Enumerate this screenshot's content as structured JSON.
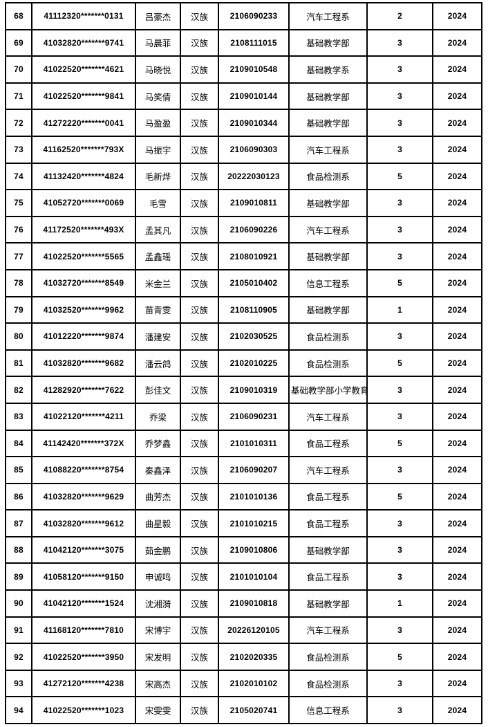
{
  "colors": {
    "border": "#000000",
    "text": "#000000",
    "background": "#ffffff"
  },
  "table": {
    "columns": [
      {
        "key": "row_number",
        "name": "cell-row-number"
      },
      {
        "key": "id_number",
        "name": "cell-id-number"
      },
      {
        "key": "student_name",
        "name": "cell-student-name"
      },
      {
        "key": "ethnicity",
        "name": "cell-ethnicity"
      },
      {
        "key": "student_id",
        "name": "cell-student-id"
      },
      {
        "key": "department",
        "name": "cell-department"
      },
      {
        "key": "count",
        "name": "cell-count"
      },
      {
        "key": "year",
        "name": "cell-year"
      }
    ],
    "rows": [
      [
        "68",
        "41112320*******0131",
        "吕豪杰",
        "汉族",
        "2106090233",
        "汽车工程系",
        "2",
        "2024"
      ],
      [
        "69",
        "41032820*******9741",
        "马晨菲",
        "汉族",
        "2108111015",
        "基础教学部",
        "3",
        "2024"
      ],
      [
        "70",
        "41022520*******4621",
        "马晓悦",
        "汉族",
        "2109010548",
        "基础教学系",
        "3",
        "2024"
      ],
      [
        "71",
        "41022520*******9841",
        "马笑倩",
        "汉族",
        "2109010144",
        "基础教学部",
        "3",
        "2024"
      ],
      [
        "72",
        "41272220*******0041",
        "马盈盈",
        "汉族",
        "2109010344",
        "基础教学部",
        "3",
        "2024"
      ],
      [
        "73",
        "41162520*******793X",
        "马振宇",
        "汉族",
        "2106090303",
        "汽车工程系",
        "3",
        "2024"
      ],
      [
        "74",
        "41132420*******4824",
        "毛新烨",
        "汉族",
        "20222030123",
        "食品检测系",
        "5",
        "2024"
      ],
      [
        "75",
        "41052720*******0069",
        "毛雪",
        "汉族",
        "2109010811",
        "基础教学部",
        "3",
        "2024"
      ],
      [
        "76",
        "41172520*******493X",
        "孟其凡",
        "汉族",
        "2106090226",
        "汽车工程系",
        "3",
        "2024"
      ],
      [
        "77",
        "41022520*******5565",
        "孟鑫瑶",
        "汉族",
        "2108010921",
        "基础教学部",
        "3",
        "2024"
      ],
      [
        "78",
        "41032720*******8549",
        "米金兰",
        "汉族",
        "2105010402",
        "信息工程系",
        "5",
        "2024"
      ],
      [
        "79",
        "41032520*******9962",
        "苗青雯",
        "汉族",
        "2108110905",
        "基础教学部",
        "1",
        "2024"
      ],
      [
        "80",
        "41012220*******9874",
        "潘建安",
        "汉族",
        "2102030525",
        "食品检测系",
        "3",
        "2024"
      ],
      [
        "81",
        "41032820*******9682",
        "潘云鸽",
        "汉族",
        "2102010225",
        "食品检测系",
        "5",
        "2024"
      ],
      [
        "82",
        "41282920*******7622",
        "彭佳文",
        "汉族",
        "2109010319",
        "基础教学部小学教育",
        "3",
        "2024"
      ],
      [
        "83",
        "41022120*******4211",
        "乔梁",
        "汉族",
        "2106090231",
        "汽车工程系",
        "3",
        "2024"
      ],
      [
        "84",
        "41142420*******372X",
        "乔梦鑫",
        "汉族",
        "2101010311",
        "食品工程系",
        "5",
        "2024"
      ],
      [
        "85",
        "41088220*******8754",
        "秦鑫泽",
        "汉族",
        "2106090207",
        "汽车工程系",
        "3",
        "2024"
      ],
      [
        "86",
        "41032820*******9629",
        "曲芳杰",
        "汉族",
        "2101010136",
        "食品工程系",
        "5",
        "2024"
      ],
      [
        "87",
        "41032820*******9612",
        "曲星毅",
        "汉族",
        "2101010215",
        "食品工程系",
        "3",
        "2024"
      ],
      [
        "88",
        "41042120*******3075",
        "茹金鹏",
        "汉族",
        "2109010806",
        "基础教学部",
        "3",
        "2024"
      ],
      [
        "89",
        "41058120*******9150",
        "申诚鸣",
        "汉族",
        "2101010104",
        "食品工程系",
        "3",
        "2024"
      ],
      [
        "90",
        "41042120*******1524",
        "沈湘漪",
        "汉族",
        "2109010818",
        "基础教学部",
        "1",
        "2024"
      ],
      [
        "91",
        "41168120*******7810",
        "宋博宇",
        "汉族",
        "20226120105",
        "汽车工程系",
        "3",
        "2024"
      ],
      [
        "92",
        "41022520*******3950",
        "宋发明",
        "汉族",
        "2102020335",
        "食品检测系",
        "5",
        "2024"
      ],
      [
        "93",
        "41272120*******4238",
        "宋高杰",
        "汉族",
        "2102010102",
        "食品检测系",
        "3",
        "2024"
      ],
      [
        "94",
        "41022520*******1023",
        "宋雯雯",
        "汉族",
        "2105020741",
        "信息工程系",
        "3",
        "2024"
      ]
    ]
  }
}
